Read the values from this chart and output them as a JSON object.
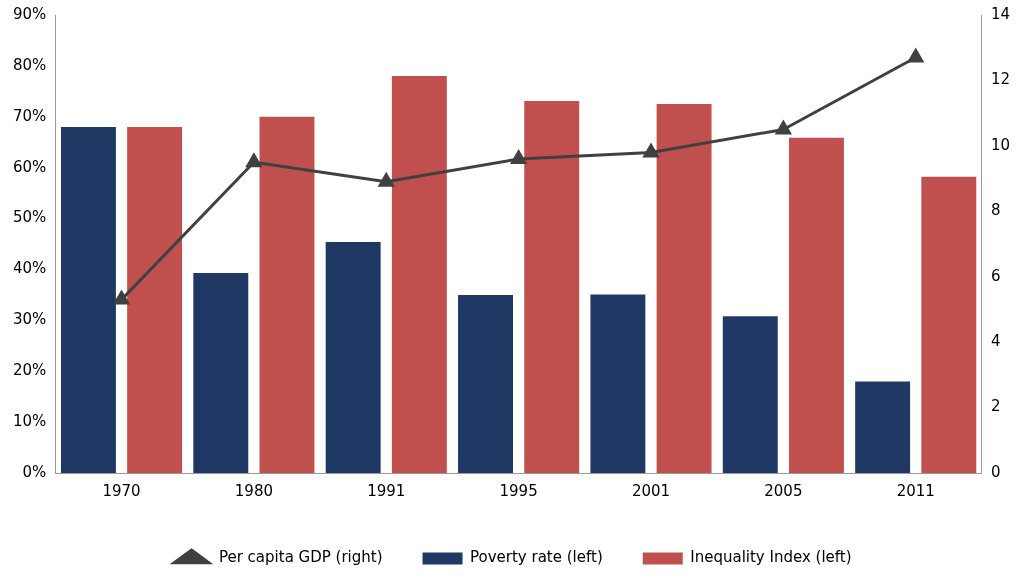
{
  "chart_data": {
    "type": "bar",
    "categories": [
      "1970",
      "1980",
      "1991",
      "1995",
      "2001",
      "2005",
      "2011"
    ],
    "series": [
      {
        "name": "Poverty rate (left)",
        "color": "#1f3864",
        "values": [
          68,
          39.3,
          45.4,
          35,
          35.1,
          30.8,
          18
        ]
      },
      {
        "name": "Inequality Index (left)",
        "color": "#c0504d",
        "values": [
          68,
          70,
          78,
          73.1,
          72.5,
          65.9,
          58.2
        ]
      },
      {
        "name": "Per capita GDP (right)",
        "color": "#404040",
        "type": "line",
        "axis": "y2",
        "marker": "triangle",
        "values": [
          5.3,
          9.5,
          8.9,
          9.6,
          9.8,
          10.5,
          12.7
        ]
      }
    ],
    "ylim": [
      0,
      90
    ],
    "yticks": [
      {
        "value": 0,
        "label": "0%"
      },
      {
        "value": 10,
        "label": "10%"
      },
      {
        "value": 20,
        "label": "20%"
      },
      {
        "value": 30,
        "label": "30%"
      },
      {
        "value": 40,
        "label": "40%"
      },
      {
        "value": 50,
        "label": "50%"
      },
      {
        "value": 60,
        "label": "60%"
      },
      {
        "value": 70,
        "label": "70%"
      },
      {
        "value": 80,
        "label": "80%"
      },
      {
        "value": 90,
        "label": "90%"
      }
    ],
    "y2lim": [
      0,
      14
    ],
    "y2ticks": [
      0,
      2,
      4,
      6,
      8,
      10,
      12,
      14
    ],
    "grid": false,
    "legend": "bottom"
  }
}
